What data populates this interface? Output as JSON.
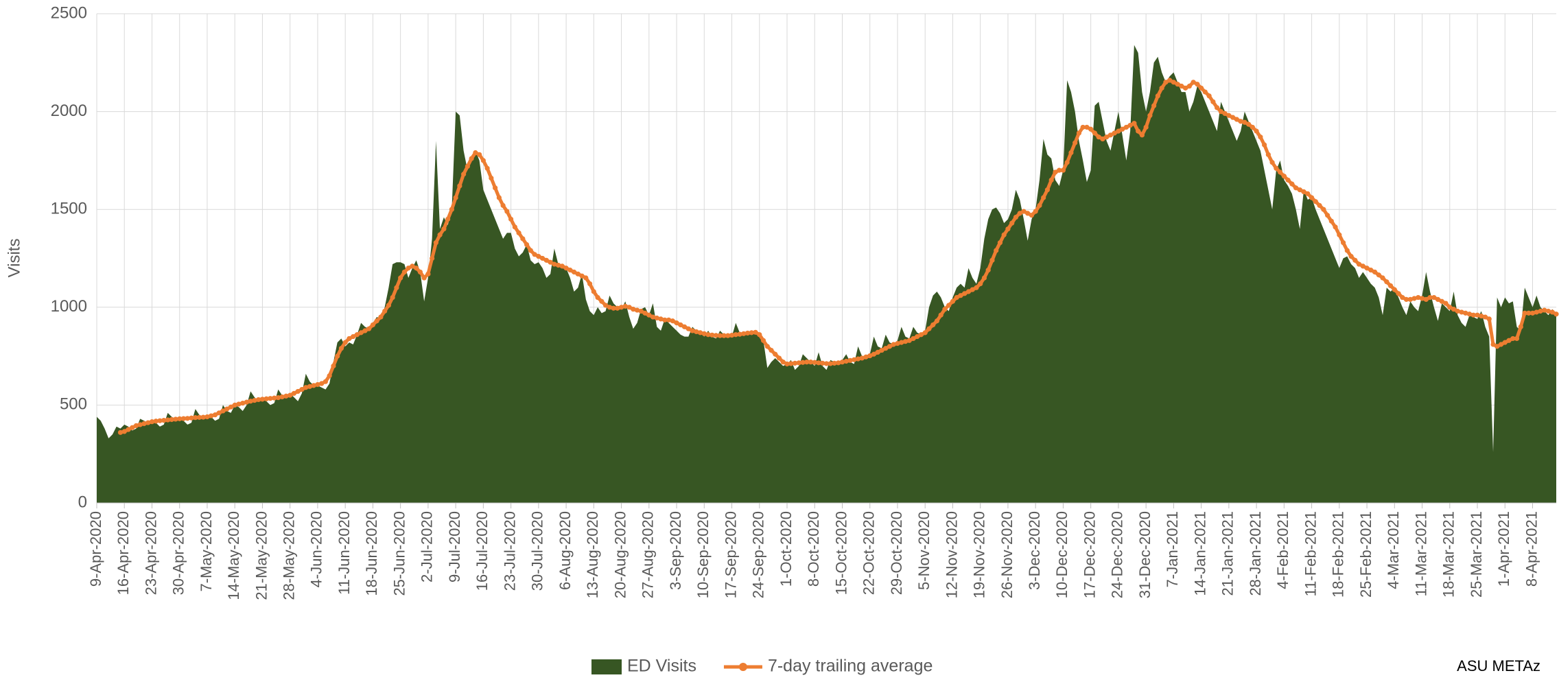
{
  "chart_data": {
    "type": "area",
    "y_label": "Visits",
    "annotation": "ASU METAz",
    "ylim": [
      0,
      2500
    ],
    "yticks": [
      0,
      500,
      1000,
      1500,
      2000,
      2500
    ],
    "grid": true,
    "legend": "bottom",
    "categories": [
      "9-Apr-2020",
      null,
      null,
      null,
      null,
      null,
      null,
      "16-Apr-2020",
      null,
      null,
      null,
      null,
      null,
      null,
      "23-Apr-2020",
      null,
      null,
      null,
      null,
      null,
      null,
      "30-Apr-2020",
      null,
      null,
      null,
      null,
      null,
      null,
      "7-May-2020",
      null,
      null,
      null,
      null,
      null,
      null,
      "14-May-2020",
      null,
      null,
      null,
      null,
      null,
      null,
      "21-May-2020",
      null,
      null,
      null,
      null,
      null,
      null,
      "28-May-2020",
      null,
      null,
      null,
      null,
      null,
      null,
      "4-Jun-2020",
      null,
      null,
      null,
      null,
      null,
      null,
      "11-Jun-2020",
      null,
      null,
      null,
      null,
      null,
      null,
      "18-Jun-2020",
      null,
      null,
      null,
      null,
      null,
      null,
      "25-Jun-2020",
      null,
      null,
      null,
      null,
      null,
      null,
      "2-Jul-2020",
      null,
      null,
      null,
      null,
      null,
      null,
      "9-Jul-2020",
      null,
      null,
      null,
      null,
      null,
      null,
      "16-Jul-2020",
      null,
      null,
      null,
      null,
      null,
      null,
      "23-Jul-2020",
      null,
      null,
      null,
      null,
      null,
      null,
      "30-Jul-2020",
      null,
      null,
      null,
      null,
      null,
      null,
      "6-Aug-2020",
      null,
      null,
      null,
      null,
      null,
      null,
      "13-Aug-2020",
      null,
      null,
      null,
      null,
      null,
      null,
      "20-Aug-2020",
      null,
      null,
      null,
      null,
      null,
      null,
      "27-Aug-2020",
      null,
      null,
      null,
      null,
      null,
      null,
      "3-Sep-2020",
      null,
      null,
      null,
      null,
      null,
      null,
      "10-Sep-2020",
      null,
      null,
      null,
      null,
      null,
      null,
      "17-Sep-2020",
      null,
      null,
      null,
      null,
      null,
      null,
      "24-Sep-2020",
      null,
      null,
      null,
      null,
      null,
      null,
      "1-Oct-2020",
      null,
      null,
      null,
      null,
      null,
      null,
      "8-Oct-2020",
      null,
      null,
      null,
      null,
      null,
      null,
      "15-Oct-2020",
      null,
      null,
      null,
      null,
      null,
      null,
      "22-Oct-2020",
      null,
      null,
      null,
      null,
      null,
      null,
      "29-Oct-2020",
      null,
      null,
      null,
      null,
      null,
      null,
      "5-Nov-2020",
      null,
      null,
      null,
      null,
      null,
      null,
      "12-Nov-2020",
      null,
      null,
      null,
      null,
      null,
      null,
      "19-Nov-2020",
      null,
      null,
      null,
      null,
      null,
      null,
      "26-Nov-2020",
      null,
      null,
      null,
      null,
      null,
      null,
      "3-Dec-2020",
      null,
      null,
      null,
      null,
      null,
      null,
      "10-Dec-2020",
      null,
      null,
      null,
      null,
      null,
      null,
      "17-Dec-2020",
      null,
      null,
      null,
      null,
      null,
      null,
      "24-Dec-2020",
      null,
      null,
      null,
      null,
      null,
      null,
      "31-Dec-2020",
      null,
      null,
      null,
      null,
      null,
      null,
      "7-Jan-2021",
      null,
      null,
      null,
      null,
      null,
      null,
      "14-Jan-2021",
      null,
      null,
      null,
      null,
      null,
      null,
      "21-Jan-2021",
      null,
      null,
      null,
      null,
      null,
      null,
      "28-Jan-2021",
      null,
      null,
      null,
      null,
      null,
      null,
      "4-Feb-2021",
      null,
      null,
      null,
      null,
      null,
      null,
      "11-Feb-2021",
      null,
      null,
      null,
      null,
      null,
      null,
      "18-Feb-2021",
      null,
      null,
      null,
      null,
      null,
      null,
      "25-Feb-2021",
      null,
      null,
      null,
      null,
      null,
      null,
      "4-Mar-2021",
      null,
      null,
      null,
      null,
      null,
      null,
      "11-Mar-2021",
      null,
      null,
      null,
      null,
      null,
      null,
      "18-Mar-2021",
      null,
      null,
      null,
      null,
      null,
      null,
      "25-Mar-2021",
      null,
      null,
      null,
      null,
      null,
      null,
      "1-Apr-2021",
      null,
      null,
      null,
      null,
      null,
      null,
      "8-Apr-2021",
      null,
      null,
      null,
      null,
      null,
      null
    ],
    "series": [
      {
        "name": "ED Visits",
        "color": "#375623",
        "type": "area",
        "values": [
          440,
          420,
          380,
          330,
          350,
          390,
          380,
          400,
          390,
          370,
          380,
          430,
          420,
          410,
          420,
          410,
          390,
          400,
          460,
          440,
          430,
          430,
          420,
          400,
          410,
          480,
          450,
          440,
          450,
          440,
          420,
          430,
          500,
          470,
          460,
          500,
          490,
          470,
          500,
          570,
          540,
          520,
          530,
          520,
          500,
          510,
          580,
          550,
          540,
          560,
          540,
          520,
          560,
          660,
          620,
          600,
          600,
          590,
          580,
          610,
          720,
          820,
          840,
          800,
          820,
          810,
          860,
          920,
          900,
          890,
          920,
          950,
          940,
          1000,
          1100,
          1220,
          1230,
          1230,
          1220,
          1150,
          1200,
          1240,
          1180,
          1030,
          1150,
          1350,
          1850,
          1400,
          1460,
          1420,
          1500,
          2000,
          1980,
          1800,
          1700,
          1750,
          1800,
          1750,
          1600,
          1550,
          1500,
          1450,
          1400,
          1350,
          1380,
          1380,
          1300,
          1260,
          1280,
          1320,
          1240,
          1220,
          1230,
          1200,
          1150,
          1170,
          1300,
          1220,
          1200,
          1200,
          1150,
          1080,
          1100,
          1170,
          1040,
          980,
          960,
          1000,
          970,
          980,
          1060,
          1020,
          1000,
          990,
          1030,
          950,
          890,
          920,
          990,
          1000,
          960,
          1020,
          900,
          880,
          940,
          920,
          900,
          880,
          860,
          850,
          850,
          900,
          880,
          870,
          850,
          880,
          850,
          840,
          880,
          860,
          850,
          850,
          920,
          870,
          860,
          880,
          870,
          870,
          860,
          830,
          690,
          720,
          740,
          720,
          700,
          710,
          730,
          680,
          700,
          760,
          740,
          720,
          700,
          770,
          700,
          680,
          730,
          720,
          720,
          730,
          760,
          720,
          710,
          800,
          750,
          740,
          760,
          850,
          800,
          790,
          860,
          820,
          810,
          830,
          900,
          850,
          840,
          900,
          870,
          860,
          880,
          1000,
          1060,
          1080,
          1050,
          1000,
          980,
          1050,
          1100,
          1120,
          1100,
          1200,
          1150,
          1120,
          1200,
          1350,
          1450,
          1500,
          1510,
          1480,
          1430,
          1450,
          1500,
          1600,
          1550,
          1450,
          1340,
          1450,
          1500,
          1650,
          1860,
          1780,
          1760,
          1650,
          1620,
          1700,
          2160,
          2100,
          2000,
          1850,
          1750,
          1640,
          1700,
          2030,
          2050,
          1950,
          1850,
          1800,
          1900,
          2000,
          1880,
          1750,
          1900,
          2340,
          2300,
          2100,
          2000,
          2100,
          2250,
          2280,
          2200,
          2150,
          2180,
          2200,
          2150,
          2100,
          2100,
          2000,
          2050,
          2130,
          2100,
          2050,
          2000,
          1950,
          1900,
          2050,
          2000,
          1950,
          1900,
          1850,
          1900,
          2000,
          1950,
          1900,
          1850,
          1800,
          1700,
          1600,
          1500,
          1700,
          1750,
          1650,
          1620,
          1580,
          1500,
          1400,
          1600,
          1550,
          1560,
          1500,
          1450,
          1400,
          1350,
          1300,
          1250,
          1200,
          1250,
          1260,
          1220,
          1200,
          1150,
          1180,
          1150,
          1120,
          1100,
          1050,
          960,
          1100,
          1080,
          1100,
          1050,
          1000,
          960,
          1030,
          1000,
          980,
          1060,
          1180,
          1080,
          1000,
          930,
          1020,
          1000,
          980,
          1080,
          960,
          920,
          900,
          960,
          950,
          940,
          980,
          900,
          850,
          260,
          1050,
          1000,
          1050,
          1020,
          1030,
          900,
          880,
          1100,
          1050,
          1000,
          1060,
          1000,
          980,
          960,
          990,
          970
        ]
      },
      {
        "name": "7-day trailing average",
        "color": "#ed7d31",
        "type": "line",
        "values": [
          null,
          null,
          null,
          null,
          null,
          null,
          360,
          365,
          375,
          385,
          395,
          400,
          405,
          410,
          415,
          418,
          420,
          422,
          424,
          426,
          428,
          430,
          431,
          432,
          434,
          436,
          437,
          438,
          440,
          445,
          450,
          460,
          470,
          480,
          490,
          500,
          505,
          510,
          515,
          520,
          524,
          528,
          530,
          532,
          534,
          536,
          538,
          542,
          546,
          550,
          560,
          570,
          580,
          590,
          595,
          600,
          605,
          610,
          620,
          650,
          700,
          750,
          790,
          820,
          840,
          850,
          860,
          870,
          880,
          890,
          910,
          930,
          950,
          980,
          1010,
          1050,
          1100,
          1150,
          1180,
          1200,
          1210,
          1200,
          1180,
          1150,
          1170,
          1250,
          1330,
          1370,
          1400,
          1450,
          1500,
          1560,
          1620,
          1680,
          1720,
          1760,
          1790,
          1780,
          1750,
          1710,
          1660,
          1610,
          1560,
          1520,
          1490,
          1450,
          1410,
          1380,
          1350,
          1320,
          1290,
          1270,
          1260,
          1250,
          1240,
          1230,
          1220,
          1215,
          1210,
          1200,
          1190,
          1180,
          1170,
          1160,
          1150,
          1120,
          1080,
          1050,
          1030,
          1010,
          1000,
          995,
          995,
          1000,
          1005,
          1000,
          990,
          985,
          980,
          970,
          960,
          950,
          945,
          940,
          935,
          935,
          930,
          920,
          910,
          900,
          890,
          880,
          875,
          870,
          865,
          860,
          858,
          856,
          855,
          855,
          855,
          857,
          860,
          862,
          865,
          868,
          870,
          872,
          860,
          830,
          800,
          780,
          760,
          740,
          720,
          710,
          712,
          714,
          716,
          718,
          720,
          720,
          718,
          716,
          714,
          712,
          712,
          714,
          716,
          720,
          724,
          728,
          732,
          736,
          740,
          746,
          752,
          760,
          770,
          780,
          790,
          800,
          810,
          815,
          820,
          825,
          830,
          840,
          850,
          860,
          870,
          890,
          910,
          930,
          960,
          990,
          1010,
          1030,
          1050,
          1060,
          1070,
          1080,
          1090,
          1100,
          1120,
          1150,
          1190,
          1240,
          1290,
          1330,
          1370,
          1400,
          1430,
          1460,
          1480,
          1490,
          1480,
          1470,
          1490,
          1520,
          1560,
          1600,
          1650,
          1690,
          1700,
          1700,
          1740,
          1790,
          1840,
          1890,
          1920,
          1920,
          1910,
          1890,
          1870,
          1860,
          1870,
          1880,
          1890,
          1900,
          1910,
          1920,
          1930,
          1940,
          1900,
          1880,
          1920,
          1980,
          2030,
          2080,
          2120,
          2150,
          2160,
          2150,
          2140,
          2130,
          2120,
          2130,
          2150,
          2140,
          2120,
          2100,
          2080,
          2050,
          2020,
          2000,
          1990,
          1980,
          1970,
          1960,
          1950,
          1945,
          1935,
          1920,
          1900,
          1870,
          1830,
          1780,
          1740,
          1710,
          1690,
          1670,
          1650,
          1630,
          1610,
          1600,
          1590,
          1580,
          1560,
          1540,
          1520,
          1500,
          1470,
          1440,
          1410,
          1370,
          1330,
          1290,
          1260,
          1240,
          1220,
          1210,
          1200,
          1190,
          1180,
          1165,
          1150,
          1130,
          1110,
          1090,
          1070,
          1050,
          1040,
          1040,
          1045,
          1050,
          1045,
          1040,
          1050,
          1050,
          1040,
          1030,
          1020,
          1000,
          990,
          980,
          975,
          970,
          965,
          960,
          960,
          955,
          950,
          940,
          810,
          800,
          810,
          820,
          830,
          840,
          840,
          900,
          970,
          970,
          970,
          975,
          980,
          985,
          980,
          975,
          965
        ]
      }
    ]
  }
}
